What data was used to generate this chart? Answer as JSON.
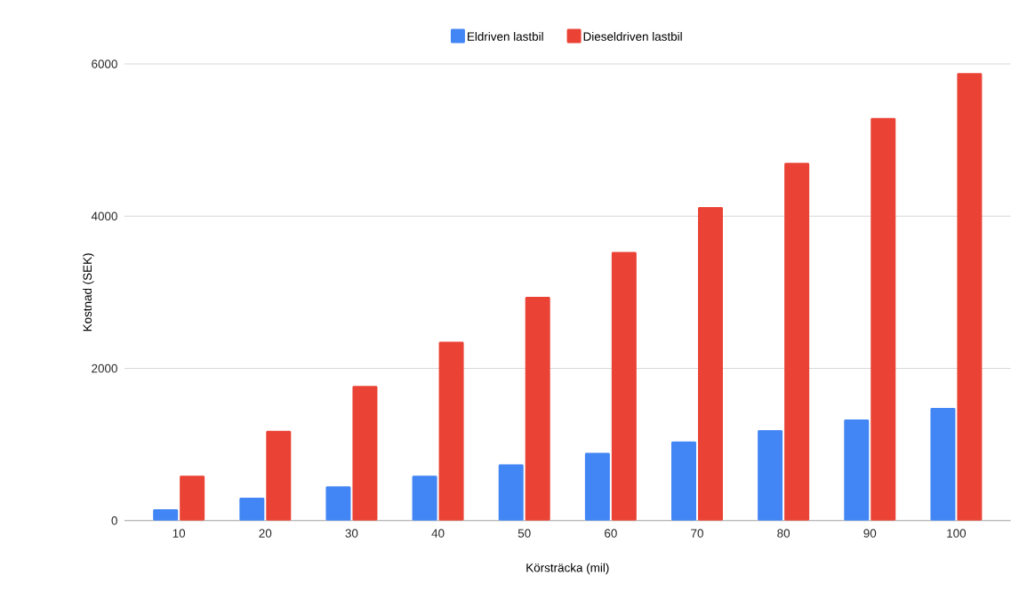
{
  "chart_data": {
    "type": "bar",
    "xlabel": "Körsträcka (mil)",
    "ylabel": "Kostnad (SEK)",
    "categories": [
      "10",
      "20",
      "30",
      "40",
      "50",
      "60",
      "70",
      "80",
      "90",
      "100"
    ],
    "series": [
      {
        "name": "Eldriven lastbil",
        "color": "#4285f4",
        "values": [
          150,
          300,
          450,
          590,
          740,
          890,
          1040,
          1190,
          1330,
          1480
        ]
      },
      {
        "name": "Dieseldriven lastbil",
        "color": "#ea4335",
        "values": [
          590,
          1180,
          1770,
          2350,
          2940,
          3530,
          4120,
          4700,
          5290,
          5880
        ]
      }
    ],
    "ylim": [
      0,
      6000
    ],
    "yticks": [
      0,
      2000,
      4000,
      6000
    ],
    "grid": "y",
    "legend": "top"
  }
}
